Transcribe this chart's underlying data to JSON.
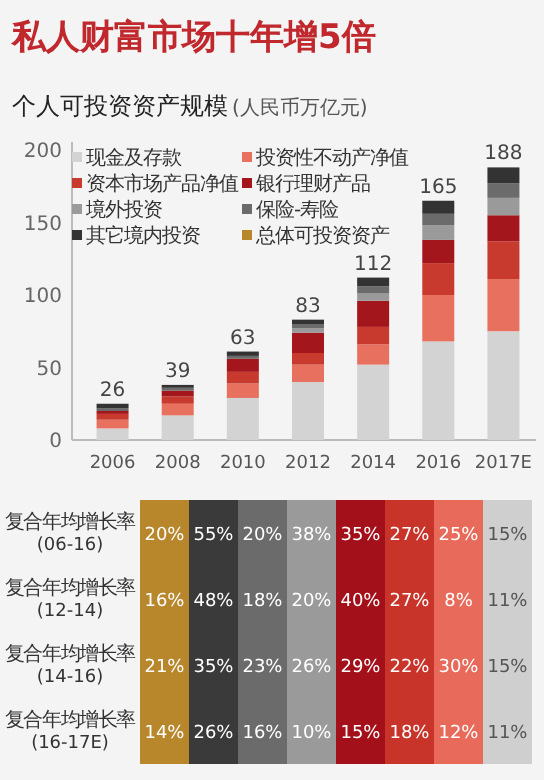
{
  "chart_data": [
    {
      "type": "bar",
      "stacked": true,
      "title": "私人财富市场十年增5倍",
      "subtitle": "个人可投资资产规模",
      "ylabel": "(人民币万亿元)",
      "categories": [
        "2006",
        "2008",
        "2010",
        "2012",
        "2014",
        "2016",
        "2017E"
      ],
      "ylim": [
        0,
        200
      ],
      "yticks": [
        0,
        50,
        100,
        150,
        200
      ],
      "legend": "top left",
      "grid": false,
      "series": [
        {
          "name": "现金及存款",
          "color": "#d3d3d3",
          "values": [
            8,
            17,
            29,
            40,
            52,
            68,
            75
          ]
        },
        {
          "name": "投资性不动产净值",
          "color": "#e8705f",
          "values": [
            6,
            8,
            10,
            12,
            14,
            32,
            36
          ]
        },
        {
          "name": "资本市场产品净值",
          "color": "#c93a2e",
          "values": [
            4,
            5,
            8,
            8,
            12,
            22,
            26
          ]
        },
        {
          "name": "银行理财产品",
          "color": "#a3161c",
          "values": [
            2,
            4,
            9,
            14,
            18,
            16,
            18
          ]
        },
        {
          "name": "境外投资",
          "color": "#9a9a9a",
          "values": [
            null,
            null,
            null,
            3,
            5,
            10,
            12
          ]
        },
        {
          "name": "保险-寿险",
          "color": "#6b6b6b",
          "values": [
            2,
            2,
            2,
            3,
            5,
            8,
            10
          ]
        },
        {
          "name": "其它境内投资",
          "color": "#333333",
          "values": [
            3,
            2,
            3,
            3,
            6,
            9,
            11
          ]
        },
        {
          "name": "总体可投资资产",
          "color": "#b8862b",
          "values": [
            null,
            null,
            null,
            null,
            null,
            null,
            null
          ]
        }
      ],
      "totals": [
        "26",
        "39",
        "63",
        "83",
        "112",
        "165",
        "188"
      ]
    },
    {
      "type": "heatmap",
      "categories": [
        null,
        null,
        null,
        null,
        null,
        null,
        null,
        null
      ],
      "y_categories": [
        "复合年均增长率\n(06-16)",
        "复合年均增长率\n(12-14)",
        "复合年均增长率\n(14-16)",
        "复合年均增长率\n(16-17E)"
      ],
      "colors": [
        "#b8862b",
        "#3a3a3a",
        "#6b6b6b",
        "#9a9a9a",
        "#a3101a",
        "#c8332a",
        "#e86a5a",
        "#cfcfcf"
      ],
      "cells": [
        [
          20,
          55,
          20,
          38,
          35,
          27,
          25,
          15
        ],
        [
          16,
          48,
          18,
          20,
          40,
          27,
          8,
          11
        ],
        [
          21,
          35,
          23,
          26,
          29,
          22,
          30,
          15
        ],
        [
          14,
          26,
          16,
          10,
          15,
          18,
          12,
          11
        ]
      ],
      "cell_labels": [
        [
          "20%",
          "55%",
          "20%",
          "38%",
          "35%",
          "27%",
          "25%",
          "15%"
        ],
        [
          "16%",
          "48%",
          "18%",
          "20%",
          "40%",
          "27%",
          "8%",
          "11%"
        ],
        [
          "21%",
          "35%",
          "23%",
          "26%",
          "29%",
          "22%",
          "30%",
          "15%"
        ],
        [
          "14%",
          "26%",
          "16%",
          "10%",
          "15%",
          "18%",
          "12%",
          "11%"
        ]
      ]
    }
  ]
}
